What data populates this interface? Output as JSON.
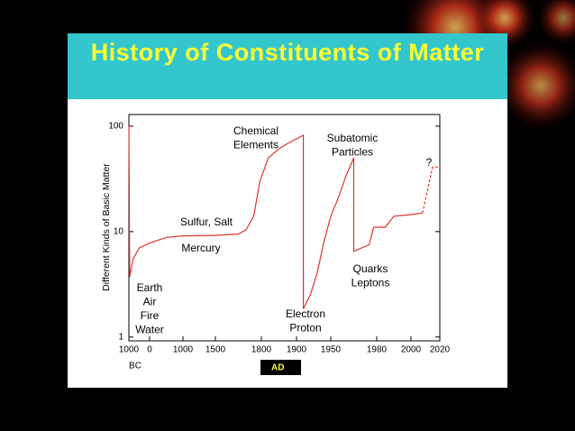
{
  "chart_data": {
    "type": "line",
    "title": "History of Constituents of Matter",
    "y_label": "Different Kinds of Basic Matter",
    "x_unit_note": "BC",
    "x_era_note": "AD",
    "log_y": true,
    "xlim": [
      -1000,
      2020
    ],
    "xticks": [
      {
        "value": -1000,
        "label": "1000"
      },
      0,
      1000,
      1500,
      1800,
      1900,
      1950,
      1980,
      2000,
      2020
    ],
    "ylim": [
      0.92,
      129
    ],
    "yticks": [
      1,
      10,
      100
    ],
    "series": [
      {
        "color": "#e0322a",
        "dashed": false,
        "x": [
          -1000,
          -960,
          -800,
          -500,
          0,
          500,
          1000,
          1500,
          1650,
          1700,
          1750,
          1790,
          1820,
          1850,
          1880,
          1910,
          1910,
          1920,
          1930,
          1940,
          1950,
          1955,
          1960,
          1965,
          1965,
          1975,
          1978,
          1985,
          1990,
          2000,
          2008
        ],
        "values": [
          100,
          3.7,
          5.5,
          7,
          7.8,
          8.8,
          9.1,
          9.2,
          9.5,
          10.4,
          14,
          30,
          50,
          61,
          70,
          82,
          1.85,
          2.5,
          4,
          8,
          14,
          21,
          34,
          50,
          6.5,
          7.5,
          11,
          11,
          14,
          14.5,
          15
        ]
      },
      {
        "color": "#e0322a",
        "dashed": true,
        "x": [
          2008,
          2015,
          2020
        ],
        "values": [
          15,
          41,
          41
        ]
      }
    ],
    "annotations": [
      {
        "lines": [
          "Chemical",
          "Elements"
        ]
      },
      {
        "lines": [
          "Subatomic",
          "Particles"
        ]
      },
      {
        "lines": [
          "?"
        ]
      },
      {
        "lines": [
          "Sulfur, Salt"
        ]
      },
      {
        "lines": [
          "Mercury"
        ]
      },
      {
        "lines": [
          "Quarks",
          "Leptons"
        ]
      },
      {
        "lines": [
          "Earth",
          "Air",
          "Fire",
          "Water"
        ]
      },
      {
        "lines": [
          "Electron",
          "Proton"
        ]
      }
    ]
  }
}
